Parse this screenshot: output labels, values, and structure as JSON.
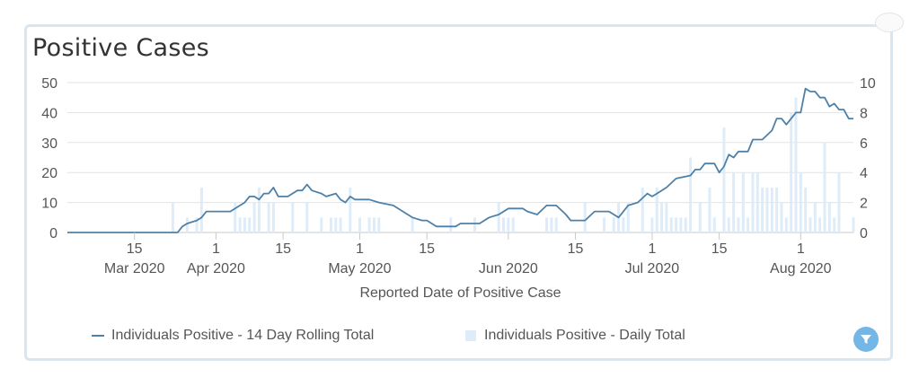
{
  "title": "Positive Cases",
  "legend": {
    "line_label": "Individuals Positive - 14 Day Rolling Total",
    "bar_label": "Individuals Positive - Daily Total"
  },
  "filter_icon": "filter-icon",
  "colors": {
    "line": "#4f81a8",
    "bar": "#ddecf8",
    "grid": "#e3e3e3",
    "filter": "#74b6e5",
    "border": "#d8e6f1"
  },
  "chart_data": {
    "type": "line",
    "title": "Positive Cases",
    "xlabel": "Reported Date of Positive Case",
    "ylabel_left": "",
    "ylabel_right": "",
    "y_left_range": [
      0,
      50
    ],
    "y_left_ticks": [
      0,
      10,
      20,
      30,
      40,
      50
    ],
    "y_right_range": [
      0,
      10
    ],
    "y_right_ticks": [
      0,
      2,
      4,
      6,
      8,
      10
    ],
    "x_range": [
      "2020-03-01",
      "2020-08-12"
    ],
    "x_ticks": [
      {
        "date": "2020-03-15",
        "day": "15",
        "month": "Mar 2020"
      },
      {
        "date": "2020-04-01",
        "day": "1",
        "month": "Apr 2020"
      },
      {
        "date": "2020-04-15",
        "day": "15",
        "month": ""
      },
      {
        "date": "2020-05-01",
        "day": "1",
        "month": "May 2020"
      },
      {
        "date": "2020-05-15",
        "day": "15",
        "month": ""
      },
      {
        "date": "2020-06-01",
        "day": "",
        "month": "Jun 2020"
      },
      {
        "date": "2020-06-15",
        "day": "15",
        "month": ""
      },
      {
        "date": "2020-07-01",
        "day": "1",
        "month": "Jul 2020"
      },
      {
        "date": "2020-07-15",
        "day": "15",
        "month": ""
      },
      {
        "date": "2020-08-01",
        "day": "1",
        "month": "Aug 2020"
      }
    ],
    "grid": true,
    "legend_position": "bottom",
    "series": [
      {
        "name": "Individuals Positive - 14 Day Rolling Total",
        "type": "line",
        "axis": "left",
        "points": [
          [
            "2020-03-01",
            0
          ],
          [
            "2020-03-24",
            0
          ],
          [
            "2020-03-25",
            2
          ],
          [
            "2020-03-26",
            3
          ],
          [
            "2020-03-28",
            4
          ],
          [
            "2020-03-29",
            5
          ],
          [
            "2020-03-30",
            7
          ],
          [
            "2020-04-04",
            7
          ],
          [
            "2020-04-06",
            9
          ],
          [
            "2020-04-07",
            10
          ],
          [
            "2020-04-08",
            12
          ],
          [
            "2020-04-09",
            12
          ],
          [
            "2020-04-10",
            11
          ],
          [
            "2020-04-11",
            13
          ],
          [
            "2020-04-12",
            13
          ],
          [
            "2020-04-13",
            15
          ],
          [
            "2020-04-14",
            12
          ],
          [
            "2020-04-16",
            12
          ],
          [
            "2020-04-18",
            14
          ],
          [
            "2020-04-19",
            14
          ],
          [
            "2020-04-20",
            16
          ],
          [
            "2020-04-21",
            14
          ],
          [
            "2020-04-23",
            13
          ],
          [
            "2020-04-24",
            12
          ],
          [
            "2020-04-26",
            13
          ],
          [
            "2020-04-27",
            11
          ],
          [
            "2020-04-28",
            10
          ],
          [
            "2020-04-29",
            12
          ],
          [
            "2020-04-30",
            11
          ],
          [
            "2020-05-01",
            11
          ],
          [
            "2020-05-03",
            11
          ],
          [
            "2020-05-05",
            10
          ],
          [
            "2020-05-08",
            9
          ],
          [
            "2020-05-10",
            7
          ],
          [
            "2020-05-12",
            5
          ],
          [
            "2020-05-14",
            4
          ],
          [
            "2020-05-15",
            4
          ],
          [
            "2020-05-17",
            2
          ],
          [
            "2020-05-21",
            2
          ],
          [
            "2020-05-22",
            3
          ],
          [
            "2020-05-26",
            3
          ],
          [
            "2020-05-28",
            5
          ],
          [
            "2020-05-30",
            6
          ],
          [
            "2020-06-01",
            8
          ],
          [
            "2020-06-04",
            8
          ],
          [
            "2020-06-05",
            7
          ],
          [
            "2020-06-07",
            6
          ],
          [
            "2020-06-09",
            9
          ],
          [
            "2020-06-11",
            9
          ],
          [
            "2020-06-13",
            6
          ],
          [
            "2020-06-14",
            4
          ],
          [
            "2020-06-17",
            4
          ],
          [
            "2020-06-19",
            7
          ],
          [
            "2020-06-22",
            7
          ],
          [
            "2020-06-24",
            5
          ],
          [
            "2020-06-26",
            9
          ],
          [
            "2020-06-28",
            10
          ],
          [
            "2020-06-30",
            13
          ],
          [
            "2020-07-01",
            12
          ],
          [
            "2020-07-02",
            13
          ],
          [
            "2020-07-04",
            15
          ],
          [
            "2020-07-06",
            18
          ],
          [
            "2020-07-09",
            19
          ],
          [
            "2020-07-10",
            21
          ],
          [
            "2020-07-11",
            21
          ],
          [
            "2020-07-12",
            23
          ],
          [
            "2020-07-14",
            23
          ],
          [
            "2020-07-15",
            20
          ],
          [
            "2020-07-16",
            22
          ],
          [
            "2020-07-17",
            26
          ],
          [
            "2020-07-18",
            25
          ],
          [
            "2020-07-19",
            27
          ],
          [
            "2020-07-21",
            27
          ],
          [
            "2020-07-22",
            31
          ],
          [
            "2020-07-24",
            31
          ],
          [
            "2020-07-26",
            34
          ],
          [
            "2020-07-27",
            38
          ],
          [
            "2020-07-28",
            38
          ],
          [
            "2020-07-29",
            36
          ],
          [
            "2020-07-31",
            40
          ],
          [
            "2020-08-01",
            40
          ],
          [
            "2020-08-02",
            48
          ],
          [
            "2020-08-03",
            47
          ],
          [
            "2020-08-04",
            47
          ],
          [
            "2020-08-05",
            45
          ],
          [
            "2020-08-06",
            45
          ],
          [
            "2020-08-07",
            42
          ],
          [
            "2020-08-08",
            43
          ],
          [
            "2020-08-09",
            41
          ],
          [
            "2020-08-10",
            41
          ],
          [
            "2020-08-11",
            38
          ],
          [
            "2020-08-12",
            38
          ]
        ]
      },
      {
        "name": "Individuals Positive - Daily Total",
        "type": "bar",
        "axis": "right",
        "points": [
          [
            "2020-03-23",
            2
          ],
          [
            "2020-03-26",
            1
          ],
          [
            "2020-03-28",
            1
          ],
          [
            "2020-03-29",
            3
          ],
          [
            "2020-04-05",
            2
          ],
          [
            "2020-04-06",
            1
          ],
          [
            "2020-04-07",
            1
          ],
          [
            "2020-04-08",
            1
          ],
          [
            "2020-04-09",
            2
          ],
          [
            "2020-04-10",
            3
          ],
          [
            "2020-04-12",
            2
          ],
          [
            "2020-04-13",
            2
          ],
          [
            "2020-04-17",
            2
          ],
          [
            "2020-04-20",
            2
          ],
          [
            "2020-04-23",
            1
          ],
          [
            "2020-04-25",
            1
          ],
          [
            "2020-04-26",
            1
          ],
          [
            "2020-04-27",
            1
          ],
          [
            "2020-04-29",
            3
          ],
          [
            "2020-05-01",
            1
          ],
          [
            "2020-05-03",
            1
          ],
          [
            "2020-05-04",
            1
          ],
          [
            "2020-05-05",
            1
          ],
          [
            "2020-05-12",
            1
          ],
          [
            "2020-05-20",
            1
          ],
          [
            "2020-05-25",
            1
          ],
          [
            "2020-05-30",
            2
          ],
          [
            "2020-05-31",
            1
          ],
          [
            "2020-06-01",
            1
          ],
          [
            "2020-06-02",
            1
          ],
          [
            "2020-06-09",
            1
          ],
          [
            "2020-06-10",
            1
          ],
          [
            "2020-06-11",
            1
          ],
          [
            "2020-06-17",
            2
          ],
          [
            "2020-06-21",
            1
          ],
          [
            "2020-06-23",
            1
          ],
          [
            "2020-06-24",
            2
          ],
          [
            "2020-06-25",
            1
          ],
          [
            "2020-06-26",
            2
          ],
          [
            "2020-06-29",
            3
          ],
          [
            "2020-07-01",
            1
          ],
          [
            "2020-07-02",
            3
          ],
          [
            "2020-07-03",
            2
          ],
          [
            "2020-07-04",
            2
          ],
          [
            "2020-07-05",
            1
          ],
          [
            "2020-07-06",
            1
          ],
          [
            "2020-07-07",
            1
          ],
          [
            "2020-07-08",
            1
          ],
          [
            "2020-07-09",
            5
          ],
          [
            "2020-07-11",
            2
          ],
          [
            "2020-07-13",
            3
          ],
          [
            "2020-07-14",
            1
          ],
          [
            "2020-07-16",
            7
          ],
          [
            "2020-07-17",
            1
          ],
          [
            "2020-07-18",
            4
          ],
          [
            "2020-07-19",
            1
          ],
          [
            "2020-07-20",
            4
          ],
          [
            "2020-07-21",
            1
          ],
          [
            "2020-07-22",
            4
          ],
          [
            "2020-07-23",
            4
          ],
          [
            "2020-07-24",
            3
          ],
          [
            "2020-07-25",
            3
          ],
          [
            "2020-07-26",
            3
          ],
          [
            "2020-07-27",
            3
          ],
          [
            "2020-07-28",
            2
          ],
          [
            "2020-07-29",
            1
          ],
          [
            "2020-07-30",
            8
          ],
          [
            "2020-07-31",
            9
          ],
          [
            "2020-08-01",
            4
          ],
          [
            "2020-08-02",
            3
          ],
          [
            "2020-08-03",
            1
          ],
          [
            "2020-08-04",
            2
          ],
          [
            "2020-08-05",
            1
          ],
          [
            "2020-08-06",
            6
          ],
          [
            "2020-08-07",
            2
          ],
          [
            "2020-08-08",
            1
          ],
          [
            "2020-08-09",
            4
          ],
          [
            "2020-08-12",
            1
          ]
        ]
      }
    ]
  }
}
